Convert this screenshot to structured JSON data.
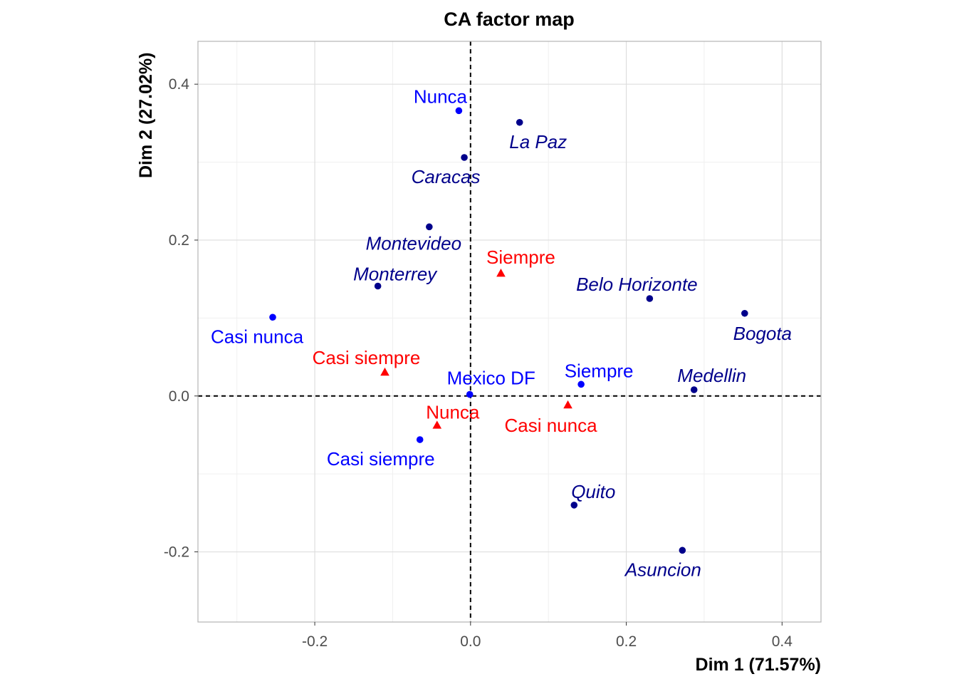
{
  "chart_data": {
    "type": "scatter",
    "title": "CA factor map",
    "xlabel": "Dim 1 (71.57%)",
    "ylabel": "Dim 2 (27.02%)",
    "xlim": [
      -0.35,
      0.45
    ],
    "ylim": [
      -0.29,
      0.455
    ],
    "xticks": [
      -0.2,
      0.0,
      0.2,
      0.4
    ],
    "yticks": [
      -0.2,
      0.0,
      0.2,
      0.4
    ],
    "xtick_labels": [
      "-0.2",
      "0.0",
      "0.2",
      "0.4"
    ],
    "ytick_labels": [
      "-0.2",
      "0.0",
      "0.2",
      "0.4"
    ],
    "grid": true,
    "reference_lines": {
      "x": 0,
      "y": 0,
      "style": "dashed"
    },
    "colors": {
      "rows": "#00008B",
      "cols": "#0000FF",
      "supp": "#FF0000"
    },
    "series": [
      {
        "group": "rows",
        "marker": "circle",
        "italic": true,
        "points": [
          {
            "label": "La Paz",
            "x": 0.063,
            "y": 0.351
          },
          {
            "label": "Caracas",
            "x": -0.008,
            "y": 0.306
          },
          {
            "label": "Montevideo",
            "x": -0.053,
            "y": 0.217
          },
          {
            "label": "Monterrey",
            "x": -0.119,
            "y": 0.141
          },
          {
            "label": "Belo Horizonte",
            "x": 0.23,
            "y": 0.125
          },
          {
            "label": "Bogota",
            "x": 0.352,
            "y": 0.106
          },
          {
            "label": "Medellin",
            "x": 0.287,
            "y": 0.008
          },
          {
            "label": "Quito",
            "x": 0.133,
            "y": -0.14
          },
          {
            "label": "Asuncion",
            "x": 0.272,
            "y": -0.198
          }
        ]
      },
      {
        "group": "cols",
        "marker": "circle",
        "italic": false,
        "points": [
          {
            "label": "Nunca",
            "x": -0.015,
            "y": 0.366
          },
          {
            "label": "Casi nunca",
            "x": -0.254,
            "y": 0.101
          },
          {
            "label": "Mexico DF",
            "x": -0.001,
            "y": 0.002
          },
          {
            "label": "Siempre",
            "x": 0.142,
            "y": 0.015
          },
          {
            "label": "Casi siempre",
            "x": -0.065,
            "y": -0.056
          }
        ]
      },
      {
        "group": "supp",
        "marker": "triangle",
        "italic": false,
        "points": [
          {
            "label": "Siempre",
            "x": 0.039,
            "y": 0.157
          },
          {
            "label": "Casi siempre",
            "x": -0.11,
            "y": 0.03
          },
          {
            "label": "Nunca",
            "x": -0.043,
            "y": -0.038
          },
          {
            "label": "Casi nunca",
            "x": 0.125,
            "y": -0.012
          }
        ]
      }
    ]
  }
}
